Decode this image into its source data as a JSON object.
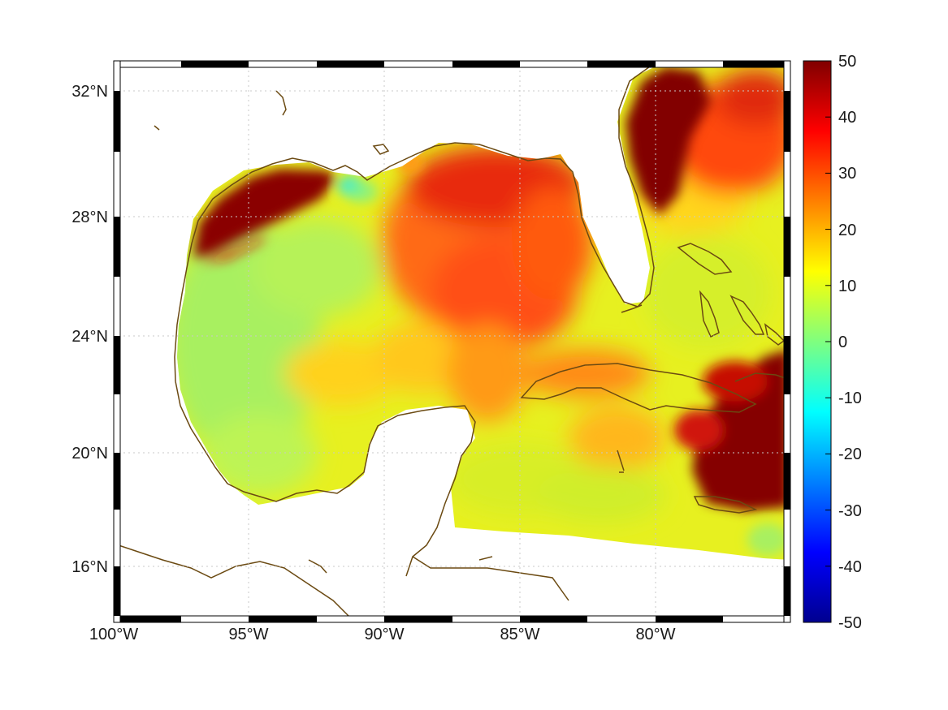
{
  "map": {
    "projection": "mercator",
    "lon_range": [
      -100,
      -75
    ],
    "lat_range": [
      14.2,
      33
    ],
    "lon_ticks": [
      {
        "value": -100,
        "label": "100°W"
      },
      {
        "value": -95,
        "label": "95°W"
      },
      {
        "value": -90,
        "label": "90°W"
      },
      {
        "value": -85,
        "label": "85°W"
      },
      {
        "value": -80,
        "label": "80°W"
      }
    ],
    "lat_ticks": [
      {
        "value": 16,
        "label": "16°N"
      },
      {
        "value": 20,
        "label": "20°N"
      },
      {
        "value": 24,
        "label": "24°N"
      },
      {
        "value": 28,
        "label": "28°N"
      },
      {
        "value": 32,
        "label": "32°N"
      }
    ],
    "grid": true,
    "frame": "alternating black/white border",
    "coastline_color": "#6b4a12",
    "land_color": "#ffffff",
    "colormap": "jet",
    "field_summary": "strong positive (dark red) near Texas/Louisiana coast, northeast Gulf, Atlantic off Florida/Georgia and around Hispaniola; moderate (10–25) across central/eastern Gulf; near-zero to slightly negative (light green/cyan) in western Gulf and off Mississippi delta"
  },
  "colorbar": {
    "min": -50,
    "max": 50,
    "position": "right",
    "ticks": [
      "50",
      "40",
      "30",
      "20",
      "10",
      "0",
      "-10",
      "-20",
      "-30",
      "-40",
      "-50"
    ]
  }
}
